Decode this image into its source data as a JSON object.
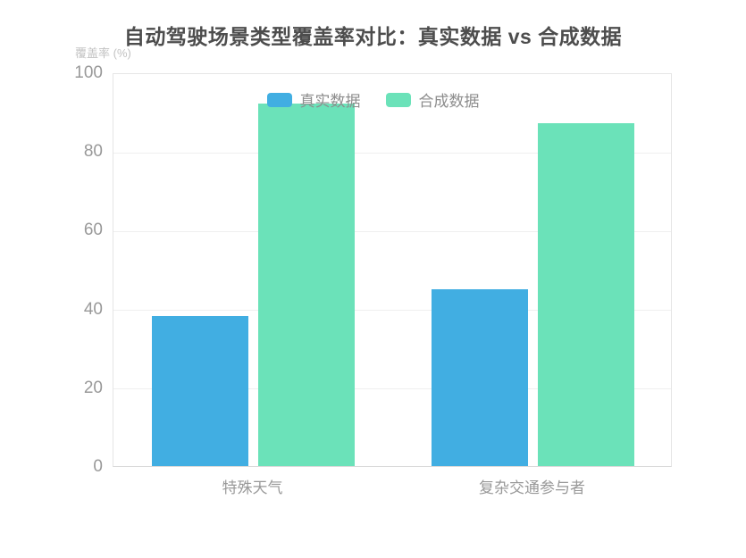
{
  "chart_data": {
    "type": "bar",
    "title": "自动驾驶场景类型覆盖率对比：真实数据 vs 合成数据",
    "ylabel": "覆盖率 (%)",
    "xlabel": "",
    "categories": [
      "特殊天气",
      "复杂交通参与者"
    ],
    "series": [
      {
        "name": "真实数据",
        "values": [
          38,
          45
        ],
        "color": "#41aee2"
      },
      {
        "name": "合成数据",
        "values": [
          92,
          87
        ],
        "color": "#6be2b9"
      }
    ],
    "ylim": [
      0,
      100
    ],
    "ytick_step": 20,
    "yticks": [
      0,
      20,
      40,
      60,
      80,
      100
    ],
    "grid": "horizontal",
    "legend_position": "top-center"
  },
  "colors": {
    "title_text": "#4d4d4d",
    "axis_name_text": "#c2c2c2",
    "tick_text": "#999999",
    "legend_text": "#8d8d8d",
    "grid_line": "#efefef",
    "frame_line": "#e5e5e5",
    "background": "#ffffff"
  }
}
